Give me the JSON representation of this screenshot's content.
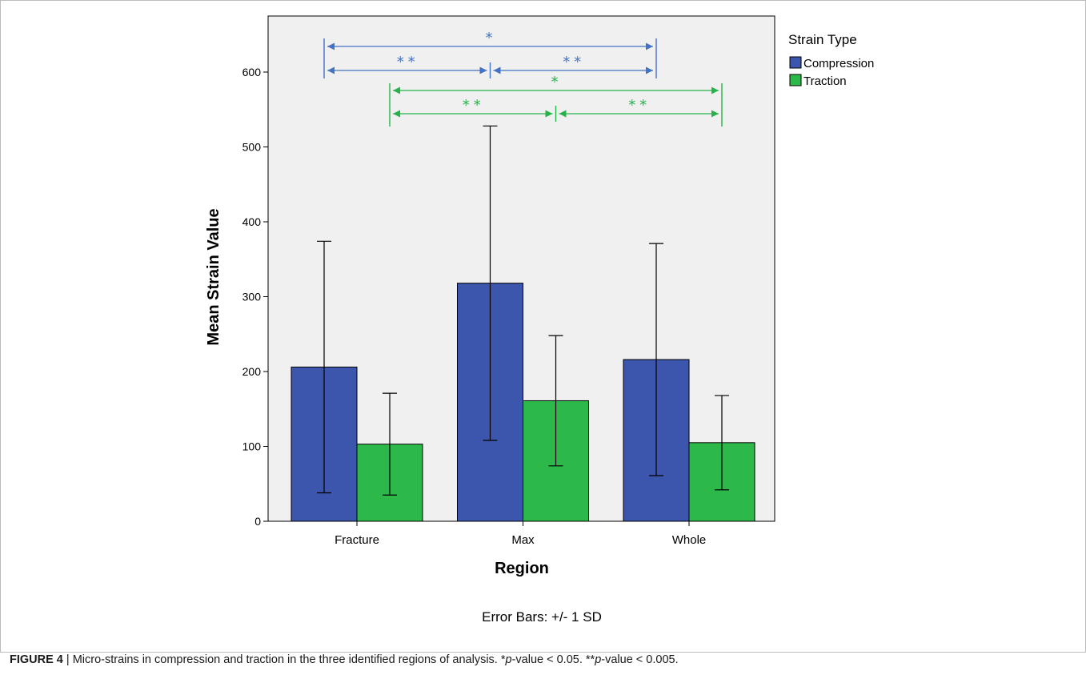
{
  "chart_data": {
    "type": "bar",
    "categories": [
      "Fracture",
      "Max",
      "Whole"
    ],
    "series": [
      {
        "name": "Compression",
        "color": "#3c55ad",
        "values": [
          206,
          318,
          216
        ],
        "sd": [
          168,
          210,
          155
        ]
      },
      {
        "name": "Traction",
        "color": "#2db84a",
        "values": [
          103,
          161,
          105
        ],
        "sd": [
          68,
          87,
          63
        ]
      }
    ],
    "xlabel": "Region",
    "ylabel": "Mean Strain Value",
    "ylim": [
      0,
      660
    ],
    "yticks": [
      0,
      100,
      200,
      300,
      400,
      500,
      600
    ],
    "legend": {
      "title": "Strain Type",
      "position": "right"
    },
    "note": "Error Bars: +/- 1 SD",
    "grid": false,
    "annotations": [
      {
        "series": "Compression",
        "from": "Fracture",
        "to": "Whole",
        "label": "*",
        "color": "#4472c4"
      },
      {
        "series": "Compression",
        "from": "Fracture",
        "to": "Max",
        "label": "**",
        "color": "#4472c4"
      },
      {
        "series": "Compression",
        "from": "Max",
        "to": "Whole",
        "label": "**",
        "color": "#4472c4"
      },
      {
        "series": "Traction",
        "from": "Fracture",
        "to": "Whole",
        "label": "*",
        "color": "#27b24a"
      },
      {
        "series": "Traction",
        "from": "Fracture",
        "to": "Max",
        "label": "**",
        "color": "#27b24a"
      },
      {
        "series": "Traction",
        "from": "Max",
        "to": "Whole",
        "label": "**",
        "color": "#27b24a"
      }
    ]
  },
  "caption": {
    "label": "FIGURE 4",
    "separator": " | ",
    "text": "Micro-strains in compression and traction in the three identified regions of analysis. ",
    "p1_star": "*",
    "p1_p": "p",
    "p1_rest": "-value < 0.05. ",
    "p2_star": "**",
    "p2_p": "p",
    "p2_rest": "-value < 0.005."
  }
}
